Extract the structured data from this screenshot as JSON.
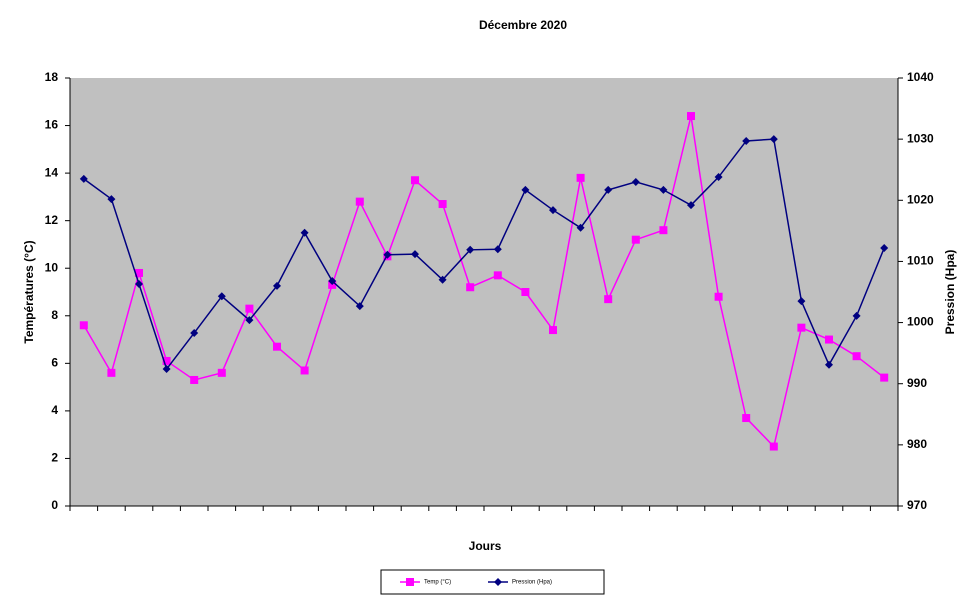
{
  "chart_data": {
    "type": "line",
    "title": "Décembre 2020",
    "x_label": "Jours",
    "y_label": "Températures (°C)",
    "y2_label": "Pression (Hpa)",
    "categories": [
      null,
      null,
      null,
      null,
      null,
      null,
      null,
      null,
      null,
      null,
      null,
      null,
      null,
      null,
      null,
      null,
      null,
      null,
      null,
      null,
      null,
      null,
      null,
      null,
      null,
      null,
      null,
      null,
      null,
      null
    ],
    "ylim": [
      0,
      18
    ],
    "yticks": [
      0,
      2,
      4,
      6,
      8,
      10,
      12,
      14,
      16,
      18
    ],
    "y2lim": [
      970,
      1040
    ],
    "y2ticks": [
      970,
      980,
      990,
      1000,
      1010,
      1020,
      1030,
      1040
    ],
    "grid": false,
    "background": "#c0c0c0",
    "legend": "bottom",
    "series": [
      {
        "name": "Temp (°C)",
        "color": "#ff00ff",
        "marker": "square",
        "axis": "y",
        "values": [
          7.6,
          5.6,
          9.8,
          6.1,
          5.3,
          5.6,
          8.3,
          6.7,
          5.7,
          9.3,
          12.8,
          10.5,
          13.7,
          12.7,
          9.2,
          9.7,
          9.0,
          7.4,
          13.8,
          8.7,
          11.2,
          11.6,
          16.4,
          8.8,
          3.7,
          2.5,
          7.5,
          7.0,
          6.3,
          5.4
        ]
      },
      {
        "name": "Pression (Hpa)",
        "color": "#000080",
        "marker": "diamond",
        "axis": "y2",
        "values": [
          1023.5,
          1020.2,
          1006.3,
          992.4,
          998.3,
          1004.3,
          1000.4,
          1006.0,
          1014.7,
          1006.8,
          1002.7,
          1011.1,
          1011.2,
          1007.0,
          1011.9,
          1012.0,
          1021.7,
          1018.4,
          1015.5,
          1021.7,
          1023.0,
          1021.7,
          1019.2,
          1023.8,
          1029.7,
          1030.0,
          1003.5,
          993.1,
          1001.1,
          1012.2
        ]
      }
    ]
  }
}
